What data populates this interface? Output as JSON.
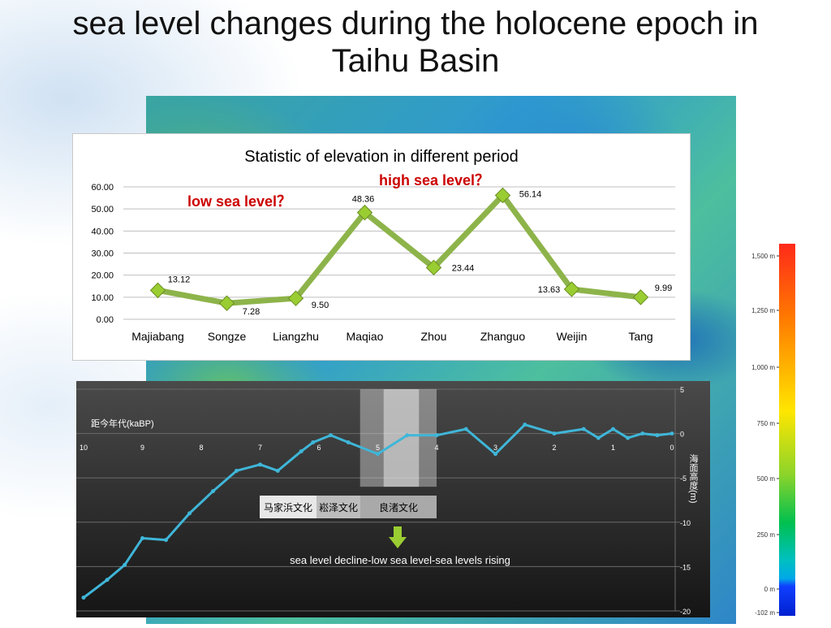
{
  "slide": {
    "title_line1": "sea level changes during the holocene epoch in",
    "title_line2": "Taihu Basin"
  },
  "chart_data": [
    {
      "type": "line",
      "title": "Statistic of elevation in different  period",
      "categories": [
        "Majiabang",
        "Songze",
        "Liangzhu",
        "Maqiao",
        "Zhou",
        "Zhanguo",
        "Weijin",
        "Tang"
      ],
      "values": [
        13.12,
        7.28,
        9.5,
        48.36,
        23.44,
        56.14,
        13.63,
        9.99
      ],
      "data_labels": [
        "13.12",
        "7.28",
        "9.50",
        "48.36",
        "23.44",
        "56.14",
        "13.63",
        "9.99"
      ],
      "yticks": [
        "0.00",
        "10.00",
        "20.00",
        "30.00",
        "40.00",
        "50.00",
        "60.00"
      ],
      "ylim": [
        0,
        60
      ],
      "grid": true,
      "line_color": "#8db44a",
      "marker_color": "#9acd32",
      "annotations": [
        {
          "text": "low sea level？",
          "color": "#cc0000"
        },
        {
          "text": "high sea level？",
          "color": "#cc0000"
        }
      ]
    },
    {
      "type": "line",
      "xlabel": "距今年代(kaBP)",
      "ylabel": "海面高度(m)",
      "xlim": [
        10,
        0
      ],
      "ylim": [
        -20,
        5
      ],
      "xticks": [
        "10",
        "9",
        "8",
        "7",
        "6",
        "5",
        "4",
        "3",
        "2",
        "1",
        "0"
      ],
      "yticks": [
        "5",
        "0",
        "-5",
        "-10",
        "-15",
        "-20"
      ],
      "x": [
        10,
        9.6,
        9.3,
        9.0,
        8.6,
        8.2,
        7.8,
        7.4,
        7.0,
        6.7,
        6.3,
        6.1,
        5.8,
        5.5,
        5.0,
        4.5,
        4.0,
        3.5,
        3.0,
        2.5,
        2.0,
        1.5,
        1.25,
        1.0,
        0.75,
        0.5,
        0.25,
        0
      ],
      "values": [
        -18.5,
        -16.5,
        -14.8,
        -11.8,
        -12.0,
        -9.0,
        -6.5,
        -4.2,
        -3.5,
        -4.2,
        -2.0,
        -1.0,
        -0.2,
        -1.0,
        -2.3,
        -0.2,
        -0.2,
        0.5,
        -2.3,
        1.0,
        0,
        0.5,
        -0.5,
        0.5,
        -0.5,
        0,
        -0.2,
        0
      ],
      "line_color": "#3fb6d8",
      "highlight_labels": [
        "马家浜文化",
        "崧泽文化",
        "良渚文化"
      ],
      "caption": "sea level decline-low sea level-sea levels rising"
    }
  ],
  "elevation_legend": {
    "labels": [
      "1,500 m",
      "1,250 m",
      "1,000 m",
      "750 m",
      "500 m",
      "250 m",
      "0 m",
      "-102 m"
    ]
  }
}
